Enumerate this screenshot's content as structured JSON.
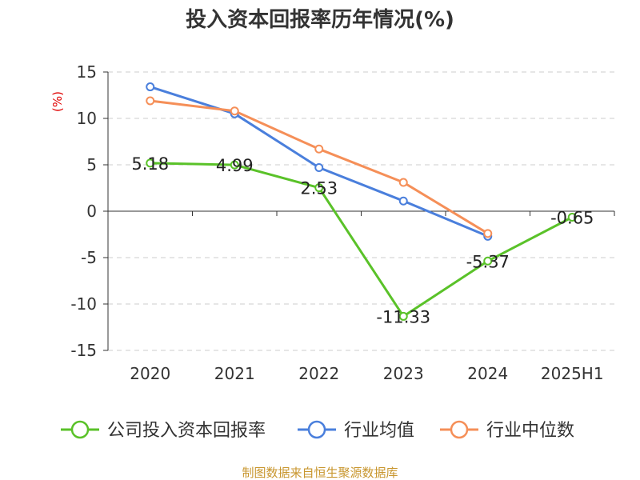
{
  "chart_data": {
    "type": "line",
    "title": "投入资本回报率历年情况(%)",
    "ylabel": "(%)",
    "xlabel": "",
    "categories": [
      "2020",
      "2021",
      "2022",
      "2023",
      "2024",
      "2025H1"
    ],
    "ylim": [
      -15,
      15
    ],
    "yticks": [
      15,
      10,
      5,
      0,
      -5,
      -10,
      -15
    ],
    "grid": true,
    "legend_position": "bottom",
    "series": [
      {
        "name": "公司投入资本回报率",
        "color": "#5ac229",
        "values": [
          5.18,
          4.99,
          2.53,
          -11.33,
          -5.37,
          -0.65
        ],
        "labels": [
          "5.18",
          "4.99",
          "2.53",
          "-11.33",
          "-5.37",
          "-0.65"
        ]
      },
      {
        "name": "行业均值",
        "color": "#4a7fdc",
        "values": [
          13.4,
          10.5,
          4.7,
          1.1,
          -2.7,
          null
        ]
      },
      {
        "name": "行业中位数",
        "color": "#f58f58",
        "values": [
          11.9,
          10.8,
          6.7,
          3.1,
          -2.4,
          null
        ]
      }
    ]
  },
  "source": "制图数据来自恒生聚源数据库"
}
